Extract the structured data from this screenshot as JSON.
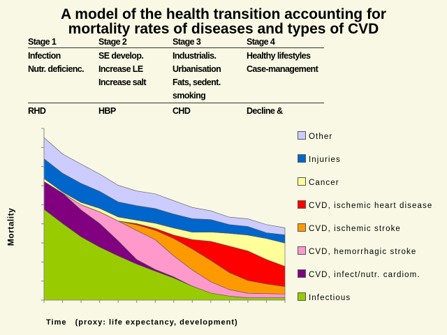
{
  "title_lines": [
    "A model of the health transition accounting for",
    "mortality rates of diseases and types of CVD"
  ],
  "stages_table": {
    "headers": [
      "Stage 1",
      "Stage 2",
      "Stage 3",
      "Stage 4"
    ],
    "determinants": [
      [
        "Infection",
        "Nutr. deficienc."
      ],
      [
        "SE develop.",
        "Increase LE",
        "Increase salt"
      ],
      [
        "Industrialis.",
        "Urbanisation",
        "Fats, sedent.",
        "smoking"
      ],
      [
        "Healthy lifestyles",
        "Case-management"
      ]
    ],
    "cvd_types": [
      "RHD",
      "HBP",
      "CHD",
      "Decline &"
    ]
  },
  "chart_data": {
    "type": "area",
    "stacked": true,
    "title": "",
    "xlabel": "Time   (proxy: life expectancy, development)",
    "ylabel": "Mortality",
    "x": [
      0,
      1,
      2,
      3,
      4,
      5,
      6,
      7,
      8,
      9,
      10,
      11,
      12,
      13
    ],
    "ylim": [
      0,
      9
    ],
    "y_tick_labels_shown": false,
    "grid": false,
    "legend_placement": "right",
    "series": [
      {
        "name": "Infectious",
        "color": "#99cc00",
        "values": [
          4.76,
          4.02,
          3.32,
          2.78,
          2.32,
          1.89,
          1.52,
          1.16,
          0.73,
          0.37,
          0.21,
          0.12,
          0.12,
          0.12
        ]
      },
      {
        "name": "CVD, infect/nutr. cardiom.",
        "color": "#800080",
        "values": [
          1.46,
          1.59,
          1.41,
          1.24,
          0.79,
          0.24,
          0.09,
          0.06,
          0,
          0,
          0,
          0,
          0,
          0
        ]
      },
      {
        "name": "CVD, hemorrhagic stroke",
        "color": "#ff99cc",
        "values": [
          0,
          0,
          0.27,
          0.61,
          1.04,
          1.52,
          1.56,
          1.1,
          0.85,
          0.59,
          0.34,
          0.24,
          0.22,
          0.2
        ]
      },
      {
        "name": "CVD, ischemic stroke",
        "color": "#ff9900",
        "values": [
          0,
          0,
          0,
          0,
          0,
          0.3,
          0.49,
          0.91,
          1.1,
          1.12,
          0.89,
          0.67,
          0.51,
          0.39
        ]
      },
      {
        "name": "CVD, ischemic heart disease",
        "color": "#ff0000",
        "values": [
          0,
          0,
          0,
          0,
          0,
          0.06,
          0.1,
          0.18,
          0.49,
          1.0,
          1.39,
          1.55,
          1.28,
          1.06
        ]
      },
      {
        "name": "Cancer",
        "color": "#ffff99",
        "values": [
          0.15,
          0.06,
          0.12,
          0.18,
          0.21,
          0.18,
          0.27,
          0.37,
          0.39,
          0.49,
          0.67,
          0.83,
          1.1,
          1.22
        ]
      },
      {
        "name": "Injuries",
        "color": "#0066cc",
        "values": [
          1.04,
          0.98,
          1.0,
          0.89,
          0.79,
          0.76,
          0.77,
          0.73,
          0.71,
          0.65,
          0.46,
          0.45,
          0.3,
          0.43
        ]
      },
      {
        "name": "Other",
        "color": "#ccccff",
        "values": [
          1.11,
          1.01,
          1.01,
          0.91,
          0.87,
          0.77,
          0.77,
          0.7,
          0.59,
          0.46,
          0.39,
          0.4,
          0.43,
          0.37
        ]
      }
    ],
    "legend_order": [
      "Other",
      "Injuries",
      "Cancer",
      "CVD, ischemic heart disease",
      "CVD, ischemic stroke",
      "CVD, hemorrhagic stroke",
      "CVD, infect/nutr. cardiom.",
      "Infectious"
    ]
  }
}
